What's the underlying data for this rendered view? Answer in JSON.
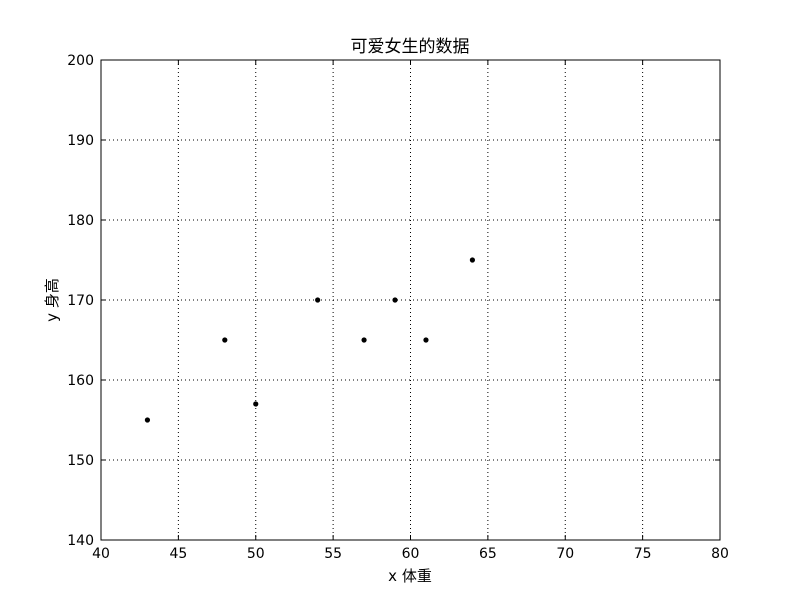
{
  "chart_data": {
    "type": "scatter",
    "title": "可爱女生的数据",
    "xlabel": "x 体重",
    "ylabel": "y 身高",
    "xlim": [
      40,
      80
    ],
    "ylim": [
      140,
      200
    ],
    "xticks": [
      40,
      45,
      50,
      55,
      60,
      65,
      70,
      75,
      80
    ],
    "yticks": [
      140,
      150,
      160,
      170,
      180,
      190,
      200
    ],
    "grid": true,
    "grid_style": "dotted",
    "marker_color": "#000000",
    "points": [
      {
        "x": 43,
        "y": 155
      },
      {
        "x": 48,
        "y": 165
      },
      {
        "x": 50,
        "y": 157
      },
      {
        "x": 54,
        "y": 170
      },
      {
        "x": 57,
        "y": 165
      },
      {
        "x": 59,
        "y": 170
      },
      {
        "x": 61,
        "y": 165
      },
      {
        "x": 64,
        "y": 175
      }
    ]
  }
}
